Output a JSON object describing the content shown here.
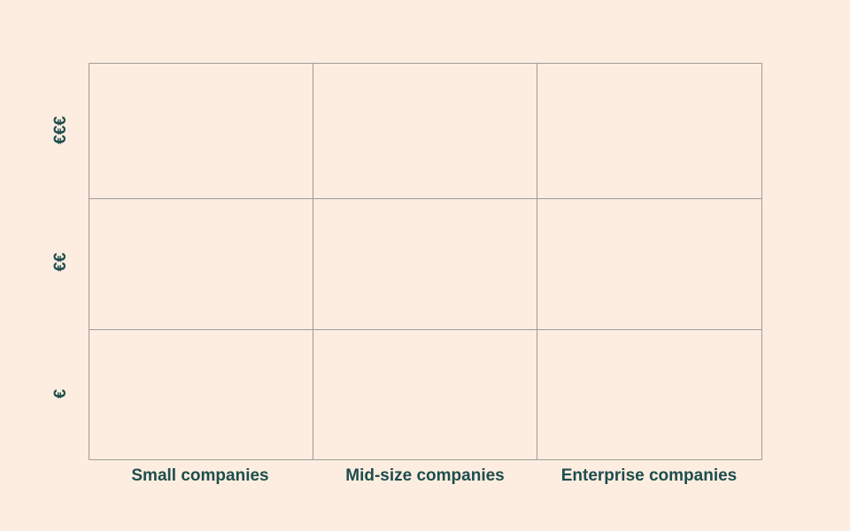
{
  "columns": [
    "Small companies",
    "Mid-size companies",
    "Enterprise companies"
  ],
  "rows": [
    "€€€",
    "€€",
    "€"
  ]
}
